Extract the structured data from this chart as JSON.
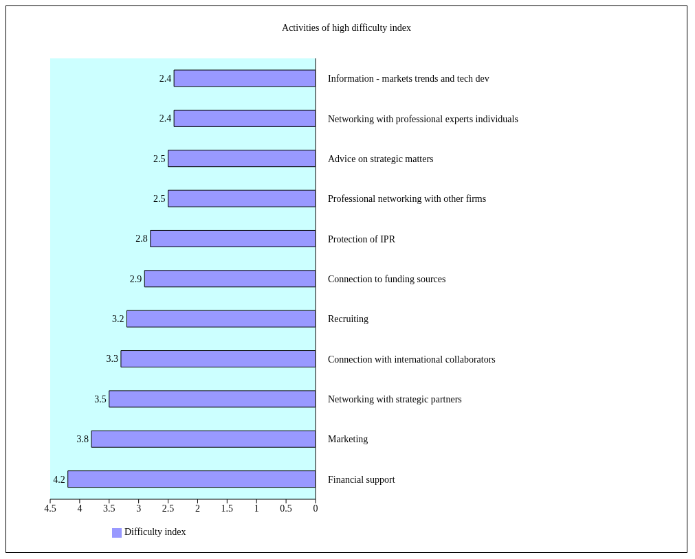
{
  "chart_data": {
    "type": "bar",
    "orientation": "horizontal",
    "title": "Activities of high difficulty index",
    "categories": [
      "Information - markets trends and tech dev",
      "Networking with professional experts individuals",
      "Advice on strategic matters",
      "Professional networking with other firms",
      "Protection of IPR",
      "Connection to funding sources",
      "Recruiting",
      "Connection with international collaborators",
      "Networking with strategic partners",
      "Marketing",
      "Financial support"
    ],
    "series": [
      {
        "name": "Difficulty index",
        "color": "#9999ff",
        "values": [
          2.4,
          2.4,
          2.5,
          2.5,
          2.8,
          2.9,
          3.2,
          3.3,
          3.5,
          3.8,
          4.2
        ]
      }
    ],
    "xlim": [
      4.5,
      0
    ],
    "xticks": [
      4.5,
      4,
      3.5,
      3,
      2.5,
      2,
      1.5,
      1,
      0.5,
      0
    ],
    "data_labels": true,
    "legend": "bottom left",
    "grid": false
  }
}
